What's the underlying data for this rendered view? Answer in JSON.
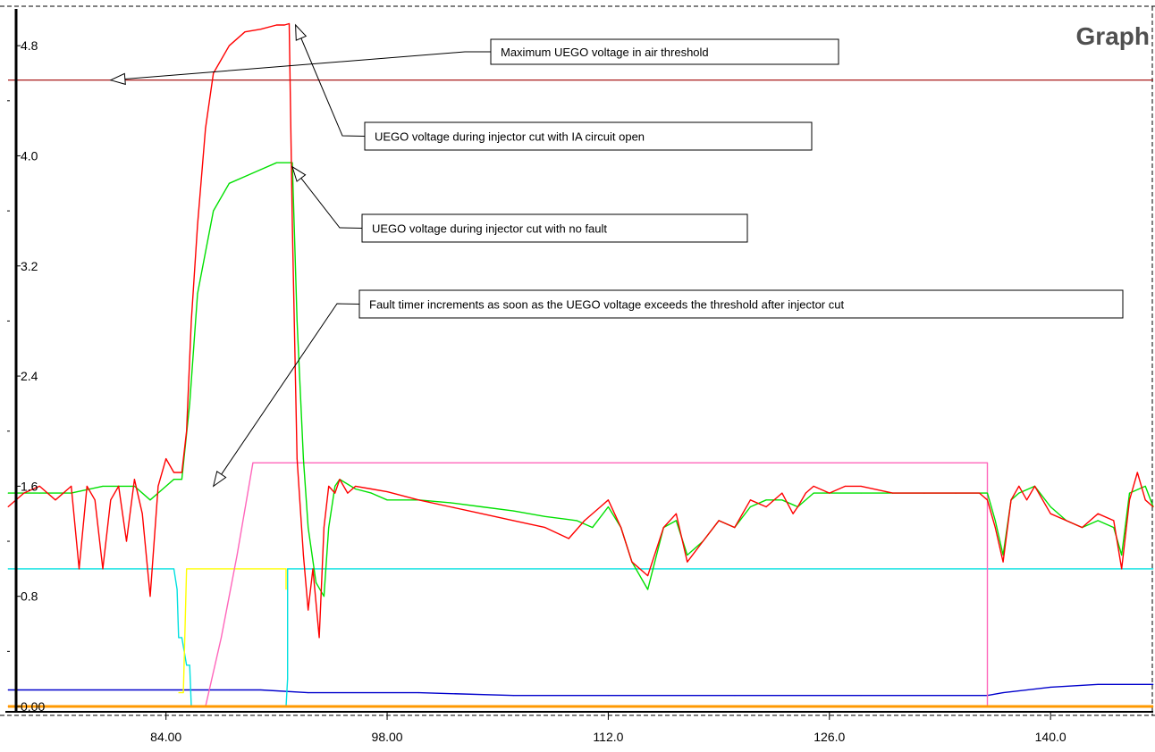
{
  "chart_data": {
    "type": "line",
    "title": "Graph",
    "xlabel": "",
    "ylabel": "",
    "xlim": [
      74.0,
      146.5
    ],
    "ylim": [
      0.0,
      5.08
    ],
    "x_ticks": [
      "84.00",
      "98.00",
      "112.0",
      "126.0",
      "140.0"
    ],
    "x_tick_values": [
      84,
      98,
      112,
      126,
      140
    ],
    "y_ticks": [
      "0.00",
      "0.8",
      "1.6",
      "2.4",
      "3.2",
      "4.0",
      "4.8"
    ],
    "y_tick_values": [
      0.0,
      0.8,
      1.6,
      2.4,
      3.2,
      4.0,
      4.8
    ],
    "grid": false,
    "colors": {
      "red": "#ff0000",
      "green": "#00e000",
      "pink": "#ff66bb",
      "cyan": "#00e0e0",
      "yellow": "#ffff00",
      "blue": "#0000cc",
      "orange": "#ff9900",
      "threshold": "#a00000"
    },
    "series": [
      {
        "key": "uego_ia_open",
        "color": "#ff0000",
        "x": [
          74.0,
          75.0,
          76.0,
          77.0,
          78.0,
          78.5,
          79.0,
          79.5,
          80.0,
          80.5,
          81.0,
          81.5,
          82.0,
          82.5,
          83.0,
          83.5,
          84.0,
          84.5,
          85.0,
          85.3,
          85.6,
          86.0,
          86.5,
          87.0,
          88.0,
          89.0,
          90.0,
          91.0,
          91.5,
          91.8,
          92.0,
          92.3,
          92.7,
          93.0,
          93.3,
          93.7,
          94.0,
          94.3,
          94.7,
          95.0,
          95.5,
          96.0,
          97.0,
          98.0,
          100.0,
          102.0,
          104.0,
          106.0,
          108.0,
          109.5,
          110.5,
          111.5,
          112.0,
          112.8,
          113.5,
          114.5,
          115.5,
          116.3,
          117.0,
          118.0,
          119.0,
          120.0,
          121.0,
          122.0,
          123.0,
          123.7,
          124.0,
          124.5,
          125.0,
          126.0,
          127.0,
          128.0,
          130.0,
          132.0,
          134.0,
          135.5,
          136.0,
          136.5,
          137.0,
          137.5,
          138.0,
          138.5,
          139.0,
          140.0,
          141.0,
          142.0,
          143.0,
          144.0,
          144.5,
          145.0,
          145.5,
          146.0,
          146.5
        ],
        "y": [
          1.45,
          1.55,
          1.6,
          1.5,
          1.6,
          1.0,
          1.6,
          1.5,
          1.0,
          1.5,
          1.6,
          1.2,
          1.65,
          1.4,
          0.8,
          1.6,
          1.8,
          1.7,
          1.7,
          2.0,
          2.8,
          3.5,
          4.2,
          4.6,
          4.8,
          4.9,
          4.92,
          4.95,
          4.95,
          4.96,
          3.5,
          1.8,
          1.1,
          0.7,
          1.0,
          0.5,
          1.3,
          1.6,
          1.55,
          1.65,
          1.55,
          1.6,
          1.58,
          1.56,
          1.5,
          1.45,
          1.4,
          1.35,
          1.3,
          1.22,
          1.35,
          1.45,
          1.5,
          1.3,
          1.05,
          0.95,
          1.3,
          1.4,
          1.05,
          1.2,
          1.35,
          1.3,
          1.5,
          1.45,
          1.55,
          1.4,
          1.45,
          1.55,
          1.6,
          1.55,
          1.6,
          1.6,
          1.55,
          1.55,
          1.55,
          1.55,
          1.5,
          1.3,
          1.05,
          1.5,
          1.6,
          1.5,
          1.6,
          1.4,
          1.35,
          1.3,
          1.4,
          1.35,
          1.0,
          1.5,
          1.7,
          1.5,
          1.45
        ]
      },
      {
        "key": "uego_no_fault",
        "color": "#00e000",
        "x": [
          74.0,
          76.0,
          78.0,
          80.0,
          82.0,
          83.0,
          84.0,
          84.5,
          85.0,
          85.5,
          86.0,
          87.0,
          88.0,
          89.0,
          90.0,
          91.0,
          92.0,
          92.3,
          92.7,
          93.0,
          93.5,
          94.0,
          94.3,
          94.7,
          95.0,
          96.0,
          97.0,
          98.0,
          100.0,
          102.0,
          104.0,
          106.0,
          108.0,
          110.0,
          111.0,
          112.0,
          112.8,
          113.5,
          114.5,
          115.5,
          116.3,
          117.0,
          118.0,
          119.0,
          120.0,
          121.0,
          122.0,
          123.0,
          124.0,
          125.0,
          126.0,
          128.0,
          130.0,
          132.0,
          134.0,
          136.0,
          136.5,
          137.0,
          137.5,
          138.0,
          139.0,
          140.0,
          141.0,
          142.0,
          143.0,
          144.0,
          144.5,
          145.0,
          146.0,
          146.5
        ],
        "y": [
          1.55,
          1.55,
          1.55,
          1.6,
          1.6,
          1.5,
          1.6,
          1.65,
          1.65,
          2.2,
          3.0,
          3.6,
          3.8,
          3.85,
          3.9,
          3.95,
          3.95,
          2.8,
          1.8,
          1.3,
          0.9,
          0.8,
          1.3,
          1.6,
          1.65,
          1.58,
          1.55,
          1.5,
          1.5,
          1.48,
          1.45,
          1.42,
          1.38,
          1.35,
          1.3,
          1.45,
          1.3,
          1.05,
          0.85,
          1.3,
          1.35,
          1.1,
          1.2,
          1.35,
          1.3,
          1.45,
          1.5,
          1.5,
          1.45,
          1.55,
          1.55,
          1.55,
          1.55,
          1.55,
          1.55,
          1.55,
          1.35,
          1.1,
          1.5,
          1.55,
          1.6,
          1.45,
          1.35,
          1.3,
          1.35,
          1.3,
          1.1,
          1.55,
          1.6,
          1.45
        ]
      },
      {
        "key": "fault_timer",
        "color": "#ff66bb",
        "x": [
          74.0,
          86.0,
          86.5,
          87.5,
          88.5,
          89.5,
          136.0,
          136.0,
          146.5
        ],
        "y": [
          0.0,
          0.0,
          0.0,
          0.5,
          1.1,
          1.77,
          1.77,
          0.0,
          0.0
        ]
      },
      {
        "key": "cyan_signal",
        "color": "#00e0e0",
        "x": [
          74.0,
          84.5,
          84.7,
          84.8,
          85.0,
          85.3,
          85.5,
          85.6,
          91.6,
          91.7,
          91.7,
          146.5
        ],
        "y": [
          1.0,
          1.0,
          0.85,
          0.5,
          0.5,
          0.3,
          0.3,
          0.0,
          0.0,
          0.2,
          1.0,
          1.0
        ]
      },
      {
        "key": "yellow_signal",
        "color": "#ffff00",
        "x": [
          84.8,
          85.1,
          85.3,
          91.6,
          91.6
        ],
        "y": [
          0.1,
          0.1,
          1.0,
          1.0,
          0.85
        ]
      },
      {
        "key": "blue_signal",
        "color": "#0000cc",
        "x": [
          74.0,
          88.0,
          90.0,
          93.0,
          100.0,
          106.0,
          112.0,
          120.0,
          128.0,
          136.0,
          137.0,
          140.0,
          143.0,
          146.5
        ],
        "y": [
          0.12,
          0.12,
          0.12,
          0.1,
          0.1,
          0.08,
          0.08,
          0.08,
          0.08,
          0.08,
          0.1,
          0.14,
          0.16,
          0.16
        ]
      },
      {
        "key": "orange_baseline",
        "color": "#ff9900",
        "x": [
          74.0,
          146.5
        ],
        "y": [
          0.0,
          0.0
        ]
      }
    ],
    "threshold": {
      "y": 4.55,
      "color": "#a00000"
    },
    "annotations": [
      {
        "text": "Maximum UEGO voltage in air threshold",
        "target": [
          80.5,
          4.55
        ]
      },
      {
        "text": "UEGO voltage during injector cut with IA circuit open",
        "target": [
          92.2,
          4.95
        ]
      },
      {
        "text": "UEGO voltage during injector cut with no fault",
        "target": [
          92.0,
          3.92
        ]
      },
      {
        "text": "Fault timer increments as soon as the UEGO voltage exceeds the threshold after injector cut",
        "target": [
          87.0,
          1.6
        ]
      }
    ]
  }
}
